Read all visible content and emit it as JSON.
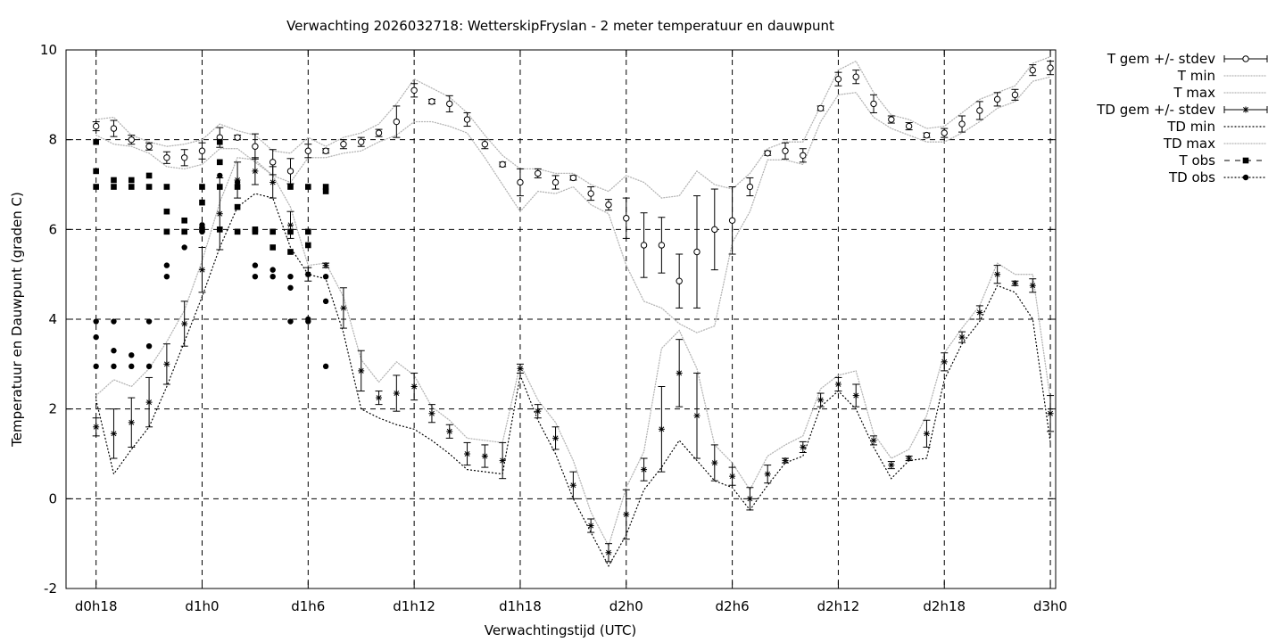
{
  "chart_data": {
    "type": "line",
    "title": "Verwachting 2026032718: WetterskipFryslan - 2 meter temperatuur en dauwpunt",
    "xlabel": "Verwachtingstijd (UTC)",
    "ylabel": "Temperatuur en Dauwpunt (graden C)",
    "ylim": [
      -2,
      10
    ],
    "yticks": [
      "-2",
      "0",
      "2",
      "4",
      "6",
      "8",
      "10"
    ],
    "xlim_hours": [
      -1.7,
      54.3
    ],
    "xticks": [
      {
        "h": 0,
        "label": "d0h18"
      },
      {
        "h": 6,
        "label": "d1h0"
      },
      {
        "h": 12,
        "label": "d1h6"
      },
      {
        "h": 18,
        "label": "d1h12"
      },
      {
        "h": 24,
        "label": "d1h18"
      },
      {
        "h": 30,
        "label": "d2h0"
      },
      {
        "h": 36,
        "label": "d2h6"
      },
      {
        "h": 42,
        "label": "d2h12"
      },
      {
        "h": 48,
        "label": "d2h18"
      },
      {
        "h": 54,
        "label": "d3h0"
      }
    ],
    "grid": true,
    "legend_position": "outside-right",
    "legend": [
      "T gem +/- stdev",
      "T min",
      "T max",
      "TD gem +/- stdev",
      "TD min",
      "TD max",
      "T obs",
      "TD obs"
    ],
    "T_mean": {
      "hours": [
        0,
        1,
        2,
        3,
        4,
        5,
        6,
        7,
        8,
        9,
        10,
        11,
        12,
        13,
        14,
        15,
        16,
        17,
        18,
        19,
        20,
        21,
        22,
        23,
        24,
        25,
        26,
        27,
        28,
        29,
        30,
        31,
        32,
        33,
        34,
        35,
        36,
        37,
        38,
        39,
        40,
        41,
        42,
        43,
        44,
        45,
        46,
        47,
        48,
        49,
        50,
        51,
        52,
        53,
        54
      ],
      "mean": [
        8.3,
        8.25,
        8.0,
        7.85,
        7.6,
        7.6,
        7.75,
        8.05,
        8.05,
        7.85,
        7.5,
        7.3,
        7.75,
        7.75,
        7.9,
        7.95,
        8.15,
        8.4,
        9.1,
        8.85,
        8.8,
        8.45,
        7.9,
        7.45,
        7.05,
        7.25,
        7.05,
        7.15,
        6.8,
        6.55,
        6.25,
        5.65,
        5.65,
        4.85,
        5.5,
        6.0,
        6.2,
        6.95,
        7.7,
        7.75,
        7.65,
        8.7,
        9.35,
        9.4,
        8.8,
        8.45,
        8.3,
        8.1,
        8.15,
        8.35,
        8.65,
        8.9,
        9.0,
        9.55,
        9.6
      ],
      "stdev": [
        0.1,
        0.18,
        0.1,
        0.08,
        0.13,
        0.18,
        0.18,
        0.22,
        0.05,
        0.28,
        0.28,
        0.28,
        0.15,
        0.05,
        0.1,
        0.1,
        0.08,
        0.35,
        0.15,
        0.05,
        0.18,
        0.15,
        0.1,
        0.05,
        0.3,
        0.1,
        0.15,
        0.05,
        0.15,
        0.12,
        0.45,
        0.72,
        0.62,
        0.6,
        1.25,
        0.9,
        0.75,
        0.2,
        0.05,
        0.18,
        0.15,
        0.05,
        0.15,
        0.15,
        0.2,
        0.08,
        0.08,
        0.05,
        0.1,
        0.18,
        0.2,
        0.15,
        0.12,
        0.12,
        0.15
      ]
    },
    "T_min": [
      8.1,
      7.9,
      7.85,
      7.7,
      7.4,
      7.35,
      7.45,
      7.8,
      7.8,
      7.5,
      7.2,
      7.05,
      7.6,
      7.6,
      7.7,
      7.75,
      7.95,
      8.1,
      8.4,
      8.4,
      8.3,
      8.15,
      7.6,
      7.0,
      6.4,
      6.85,
      6.8,
      6.95,
      6.55,
      6.35,
      5.2,
      4.4,
      4.25,
      3.9,
      3.7,
      3.85,
      5.7,
      6.4,
      7.55,
      7.55,
      7.45,
      8.4,
      9.0,
      9.05,
      8.5,
      8.25,
      8.1,
      7.95,
      7.95,
      8.15,
      8.4,
      8.7,
      8.85,
      9.3,
      9.4
    ],
    "T_max": [
      8.45,
      8.5,
      8.1,
      7.95,
      7.85,
      7.9,
      8.0,
      8.35,
      8.2,
      8.1,
      7.75,
      7.7,
      8.05,
      7.85,
      8.05,
      8.15,
      8.35,
      8.8,
      9.35,
      9.15,
      8.95,
      8.6,
      8.1,
      7.65,
      7.35,
      7.35,
      7.25,
      7.25,
      7.0,
      6.85,
      7.2,
      7.05,
      6.7,
      6.75,
      7.3,
      7.0,
      6.9,
      7.25,
      7.8,
      7.95,
      7.95,
      8.75,
      9.55,
      9.75,
      9.05,
      8.55,
      8.45,
      8.25,
      8.3,
      8.6,
      8.9,
      9.05,
      9.2,
      9.7,
      9.85
    ],
    "TD_mean": {
      "hours": [
        0,
        1,
        2,
        3,
        4,
        5,
        6,
        7,
        8,
        9,
        10,
        11,
        12,
        13,
        14,
        15,
        16,
        17,
        18,
        19,
        20,
        21,
        22,
        23,
        24,
        25,
        26,
        27,
        28,
        29,
        30,
        31,
        32,
        33,
        34,
        35,
        36,
        37,
        38,
        39,
        40,
        41,
        42,
        43,
        44,
        45,
        46,
        47,
        48,
        49,
        50,
        51,
        52,
        53,
        54
      ],
      "mean": [
        1.6,
        1.45,
        1.7,
        2.15,
        3.0,
        3.9,
        5.1,
        6.35,
        7.1,
        7.3,
        7.05,
        6.1,
        5.0,
        5.2,
        4.25,
        2.85,
        2.25,
        2.35,
        2.5,
        1.9,
        1.5,
        1.0,
        0.95,
        0.85,
        2.9,
        1.95,
        1.35,
        0.3,
        -0.6,
        -1.2,
        -0.35,
        0.65,
        1.55,
        2.8,
        1.85,
        0.8,
        0.5,
        0.0,
        0.55,
        0.85,
        1.15,
        2.2,
        2.55,
        2.3,
        1.3,
        0.75,
        0.9,
        1.45,
        3.05,
        3.6,
        4.15,
        5.0,
        4.8,
        4.75,
        1.9
      ],
      "stdev": [
        0.2,
        0.55,
        0.55,
        0.55,
        0.45,
        0.5,
        0.5,
        0.8,
        0.4,
        0.3,
        0.35,
        0.3,
        0.15,
        0.05,
        0.45,
        0.45,
        0.15,
        0.4,
        0.3,
        0.2,
        0.15,
        0.25,
        0.25,
        0.4,
        0.1,
        0.15,
        0.25,
        0.3,
        0.15,
        0.2,
        0.55,
        0.25,
        0.95,
        0.75,
        0.95,
        0.4,
        0.2,
        0.25,
        0.2,
        0.05,
        0.12,
        0.15,
        0.15,
        0.25,
        0.1,
        0.08,
        0.05,
        0.3,
        0.2,
        0.12,
        0.15,
        0.2,
        0.05,
        0.15,
        0.4
      ]
    },
    "TD_min": [
      2.2,
      0.55,
      1.1,
      1.6,
      2.5,
      3.5,
      4.5,
      5.6,
      6.5,
      6.8,
      6.7,
      5.6,
      5.0,
      4.9,
      3.7,
      2.0,
      1.8,
      1.65,
      1.55,
      1.3,
      1.0,
      0.65,
      0.6,
      0.55,
      2.75,
      1.75,
      1.0,
      0.0,
      -0.75,
      -1.5,
      -0.8,
      0.2,
      0.7,
      1.3,
      0.85,
      0.4,
      0.25,
      -0.25,
      0.3,
      0.8,
      0.95,
      2.05,
      2.4,
      2.0,
      1.15,
      0.45,
      0.85,
      0.9,
      2.65,
      3.45,
      3.95,
      4.75,
      4.6,
      4.0,
      1.25
    ],
    "TD_max": [
      2.3,
      2.65,
      2.5,
      2.9,
      3.5,
      4.2,
      5.3,
      6.6,
      7.6,
      7.55,
      7.2,
      6.5,
      5.2,
      5.25,
      4.5,
      3.1,
      2.6,
      3.05,
      2.75,
      2.05,
      1.75,
      1.35,
      1.3,
      1.25,
      3.0,
      2.2,
      1.7,
      0.85,
      -0.3,
      -1.05,
      0.25,
      1.05,
      3.35,
      3.75,
      2.9,
      1.2,
      0.8,
      0.2,
      0.95,
      1.2,
      1.4,
      2.45,
      2.75,
      2.85,
      1.45,
      0.9,
      1.1,
      1.85,
      3.25,
      3.8,
      4.3,
      5.25,
      5.0,
      5.0,
      2.2
    ],
    "T_obs": {
      "hours": [
        0,
        0,
        0,
        1,
        1,
        2,
        2,
        3,
        3,
        4,
        4,
        4,
        5,
        5,
        6,
        6,
        6,
        7,
        7,
        7,
        7,
        8,
        8,
        8,
        9,
        9,
        10,
        10,
        11,
        11,
        11,
        12,
        12,
        12,
        13,
        13
      ],
      "values": [
        7.95,
        7.3,
        6.95,
        7.1,
        6.95,
        7.1,
        6.95,
        7.2,
        6.95,
        6.95,
        6.4,
        5.95,
        6.2,
        5.95,
        6.95,
        6.6,
        6.0,
        7.95,
        7.5,
        6.95,
        6.0,
        6.95,
        6.5,
        5.95,
        5.95,
        6.0,
        5.95,
        5.6,
        5.95,
        5.5,
        6.95,
        6.95,
        5.95,
        5.65,
        6.95,
        6.85
      ]
    },
    "TD_obs": {
      "hours": [
        0,
        0,
        0,
        1,
        1,
        1,
        2,
        2,
        3,
        3,
        3,
        4,
        4,
        5,
        5,
        6,
        6,
        7,
        7,
        8,
        8,
        9,
        9,
        10,
        10,
        10,
        11,
        11,
        11,
        11,
        12,
        12,
        12,
        13,
        13,
        13
      ],
      "values": [
        3.95,
        3.6,
        2.95,
        3.95,
        3.3,
        2.95,
        3.2,
        2.95,
        3.95,
        3.4,
        2.95,
        5.2,
        4.95,
        5.95,
        5.6,
        6.1,
        5.95,
        7.2,
        6.95,
        7.05,
        5.95,
        5.2,
        4.95,
        5.1,
        4.95,
        5.95,
        4.95,
        4.7,
        3.95,
        5.95,
        4.0,
        3.95,
        5.0,
        4.4,
        4.95,
        2.95
      ]
    }
  }
}
